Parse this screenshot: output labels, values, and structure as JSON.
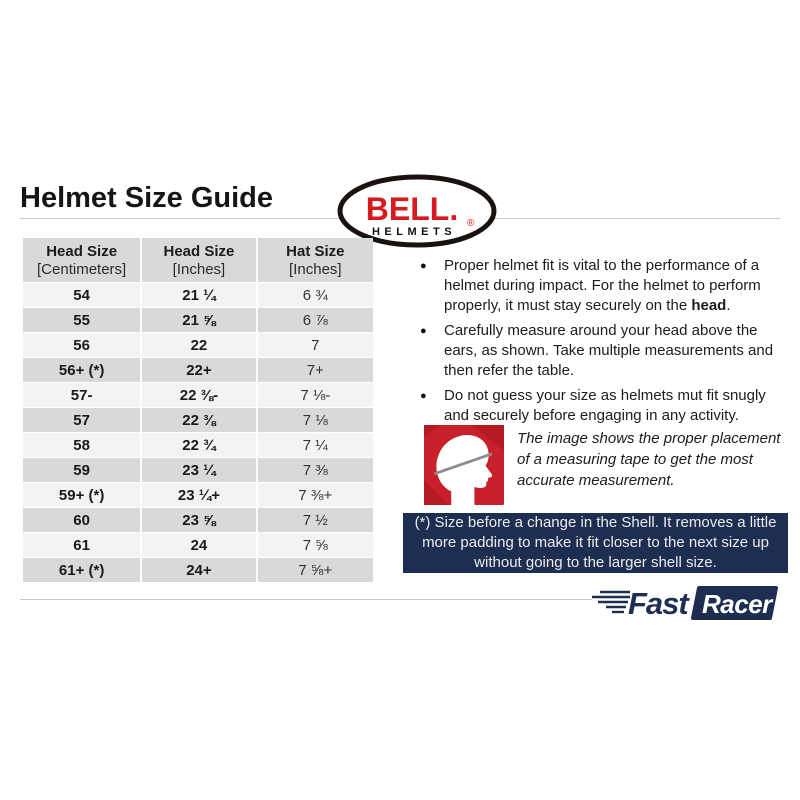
{
  "page": {
    "title": "Helmet Size Guide"
  },
  "bell_logo": {
    "brand": "BELL.",
    "reg": "®",
    "sub": "HELMETS"
  },
  "table": {
    "headers": [
      {
        "line1": "Head Size",
        "line2": "[Centimeters]"
      },
      {
        "line1": "Head Size",
        "line2": "[Inches]"
      },
      {
        "line1": "Hat Size",
        "line2": "[Inches]"
      }
    ],
    "rows": [
      [
        "54",
        "21 ¼",
        "6 ¾"
      ],
      [
        "55",
        "21 ⅝",
        "6 ⅞"
      ],
      [
        "56",
        "22",
        "7"
      ],
      [
        "56+ (*)",
        "22+",
        "7+"
      ],
      [
        "57-",
        "22 ⅜-",
        "7 ⅛-"
      ],
      [
        "57",
        "22 ⅜",
        "7 ⅛"
      ],
      [
        "58",
        "22 ¾",
        "7 ¼"
      ],
      [
        "59",
        "23 ¼",
        "7 ⅜"
      ],
      [
        "59+ (*)",
        "23 ¼+",
        "7 ⅜+"
      ],
      [
        "60",
        "23 ⅝",
        "7 ½"
      ],
      [
        "61",
        "24",
        "7 ⅝"
      ],
      [
        "61+ (*)",
        "24+",
        "7 ⅝+"
      ]
    ]
  },
  "bullets": {
    "marker": "●",
    "b1": {
      "before": "Proper helmet fit is vital to the performance of a helmet during impact. For the helmet to perform properly, it must stay securely on the ",
      "bold": "head",
      "after": "."
    },
    "b2": {
      "text": "Carefully measure around your head above the ears, as shown. Take multiple measurements and then refer the table."
    },
    "b3": {
      "text": "Do not guess your size as helmets mut fit snugly and securely before engaging in any activity."
    }
  },
  "figure": {
    "icon": "head-measuring-tape-icon",
    "caption": "The image shows the proper placement of a measuring tape to get the most accurate measurement."
  },
  "note": {
    "text": "(*) Size before a change in the Shell. It removes a little more padding to make it fit closer to the next size up without going to the larger shell size."
  },
  "footer": {
    "brand_fast": "Fast",
    "brand_racer": "Racer"
  },
  "colors": {
    "bell_red": "#d71920",
    "navy": "#1e2e50",
    "icon_red": "#c8202a",
    "header_gray": "#d9d9d9",
    "row_light": "#f3f3f2",
    "rule_gray": "#c9c9c9"
  }
}
